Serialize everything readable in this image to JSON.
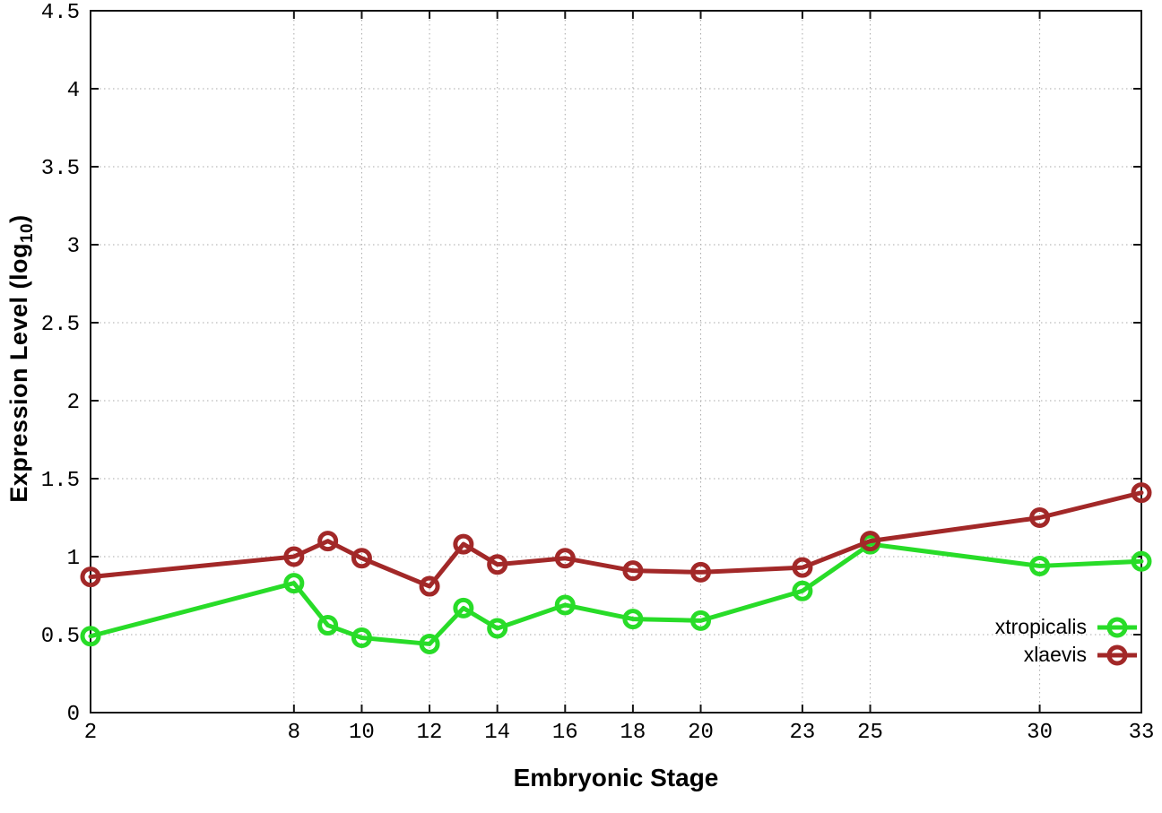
{
  "chart_data": {
    "type": "line",
    "title": "",
    "xlabel": "Embryonic Stage",
    "ylabel": {
      "prefix": "Expression Level (log",
      "sub": "10",
      "suffix": ")"
    },
    "x": [
      2,
      8,
      9,
      10,
      12,
      13,
      14,
      16,
      18,
      20,
      23,
      25,
      30,
      33
    ],
    "series": [
      {
        "name": "xtropicalis",
        "color": "#28dc28",
        "values": [
          0.49,
          0.83,
          0.56,
          0.48,
          0.44,
          0.67,
          0.54,
          0.69,
          0.6,
          0.59,
          0.78,
          1.08,
          0.94,
          0.97
        ]
      },
      {
        "name": "xlaevis",
        "color": "#a22828",
        "values": [
          0.87,
          1.0,
          1.1,
          0.99,
          0.81,
          1.08,
          0.95,
          0.99,
          0.91,
          0.9,
          0.93,
          1.1,
          1.25,
          1.41
        ]
      }
    ],
    "xticks": [
      2,
      8,
      10,
      12,
      14,
      16,
      18,
      20,
      23,
      25,
      30,
      33
    ],
    "ytick_labels": [
      "0",
      "0.5",
      "1",
      "1.5",
      "2",
      "2.5",
      "3",
      "3.5",
      "4",
      "4.5"
    ],
    "xlim": [
      2,
      33
    ],
    "ylim": [
      0,
      4.5
    ],
    "grid": true,
    "legend_position": "inside-bottom-right",
    "marker": "open-circle"
  },
  "style_colors": {
    "border": "#141414",
    "grid": "#a9a9a9",
    "tick_text": "#000000"
  }
}
